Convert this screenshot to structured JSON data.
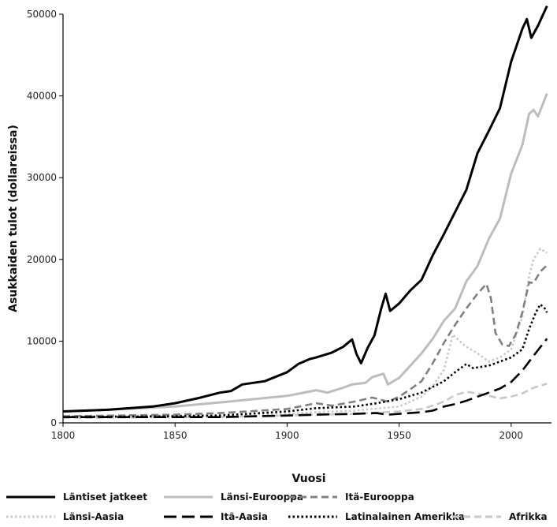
{
  "chart_data": {
    "type": "line",
    "title": "",
    "xlabel": "Vuosi",
    "ylabel": "Asukkaiden tulot (dollareissa)",
    "xlim": [
      1800,
      2018
    ],
    "ylim": [
      0,
      50000
    ],
    "xticks": [
      1800,
      1850,
      1900,
      1950,
      2000
    ],
    "yticks": [
      0,
      10000,
      20000,
      30000,
      40000,
      50000
    ],
    "grid": false,
    "legend_position": "bottom",
    "series": [
      {
        "name": "Läntiset jatkeet",
        "color": "#000000",
        "dash": "solid",
        "points": [
          [
            1800,
            1400
          ],
          [
            1820,
            1600
          ],
          [
            1840,
            2000
          ],
          [
            1850,
            2400
          ],
          [
            1860,
            3000
          ],
          [
            1870,
            3700
          ],
          [
            1875,
            3900
          ],
          [
            1880,
            4700
          ],
          [
            1890,
            5100
          ],
          [
            1900,
            6200
          ],
          [
            1905,
            7200
          ],
          [
            1910,
            7800
          ],
          [
            1913,
            8000
          ],
          [
            1920,
            8600
          ],
          [
            1925,
            9300
          ],
          [
            1929,
            10200
          ],
          [
            1931,
            8400
          ],
          [
            1933,
            7300
          ],
          [
            1936,
            9200
          ],
          [
            1939,
            10700
          ],
          [
            1942,
            14000
          ],
          [
            1944,
            15800
          ],
          [
            1946,
            13700
          ],
          [
            1950,
            14600
          ],
          [
            1955,
            16200
          ],
          [
            1960,
            17500
          ],
          [
            1965,
            20500
          ],
          [
            1970,
            23100
          ],
          [
            1975,
            25800
          ],
          [
            1980,
            28500
          ],
          [
            1985,
            33000
          ],
          [
            1990,
            35700
          ],
          [
            1995,
            38500
          ],
          [
            2000,
            44200
          ],
          [
            2005,
            48200
          ],
          [
            2007,
            49400
          ],
          [
            2009,
            47100
          ],
          [
            2012,
            48600
          ],
          [
            2016,
            51000
          ]
        ]
      },
      {
        "name": "Länsi-Eurooppa",
        "color": "#bdbdbd",
        "dash": "solid",
        "points": [
          [
            1800,
            1400
          ],
          [
            1820,
            1600
          ],
          [
            1850,
            2000
          ],
          [
            1870,
            2500
          ],
          [
            1900,
            3300
          ],
          [
            1913,
            4000
          ],
          [
            1918,
            3700
          ],
          [
            1925,
            4300
          ],
          [
            1929,
            4700
          ],
          [
            1935,
            4900
          ],
          [
            1938,
            5600
          ],
          [
            1943,
            6000
          ],
          [
            1945,
            4700
          ],
          [
            1950,
            5500
          ],
          [
            1955,
            7000
          ],
          [
            1960,
            8500
          ],
          [
            1965,
            10300
          ],
          [
            1970,
            12500
          ],
          [
            1975,
            14000
          ],
          [
            1980,
            17300
          ],
          [
            1985,
            19200
          ],
          [
            1990,
            22500
          ],
          [
            1995,
            25000
          ],
          [
            2000,
            30500
          ],
          [
            2005,
            34000
          ],
          [
            2008,
            37800
          ],
          [
            2010,
            38300
          ],
          [
            2012,
            37500
          ],
          [
            2016,
            40300
          ]
        ]
      },
      {
        "name": "Itä-Eurooppa",
        "color": "#808080",
        "dash": "dashed",
        "points": [
          [
            1800,
            800
          ],
          [
            1850,
            1000
          ],
          [
            1870,
            1200
          ],
          [
            1900,
            1700
          ],
          [
            1913,
            2400
          ],
          [
            1920,
            2100
          ],
          [
            1930,
            2600
          ],
          [
            1938,
            3100
          ],
          [
            1945,
            2600
          ],
          [
            1950,
            3200
          ],
          [
            1955,
            4100
          ],
          [
            1960,
            5100
          ],
          [
            1965,
            7300
          ],
          [
            1970,
            9800
          ],
          [
            1975,
            12000
          ],
          [
            1980,
            14000
          ],
          [
            1985,
            15800
          ],
          [
            1989,
            17000
          ],
          [
            1991,
            15200
          ],
          [
            1993,
            11000
          ],
          [
            1996,
            9600
          ],
          [
            1999,
            9400
          ],
          [
            2002,
            10800
          ],
          [
            2005,
            13500
          ],
          [
            2008,
            17200
          ],
          [
            2010,
            17100
          ],
          [
            2013,
            18500
          ],
          [
            2016,
            19300
          ]
        ]
      },
      {
        "name": "Länsi-Aasia",
        "color": "#c8c8c8",
        "dash": "dotted",
        "points": [
          [
            1800,
            800
          ],
          [
            1850,
            900
          ],
          [
            1900,
            1100
          ],
          [
            1913,
            1300
          ],
          [
            1930,
            1500
          ],
          [
            1950,
            2000
          ],
          [
            1960,
            3200
          ],
          [
            1965,
            4500
          ],
          [
            1970,
            6500
          ],
          [
            1974,
            10800
          ],
          [
            1977,
            10000
          ],
          [
            1980,
            9300
          ],
          [
            1985,
            8500
          ],
          [
            1990,
            7500
          ],
          [
            1995,
            8000
          ],
          [
            2000,
            9000
          ],
          [
            2005,
            13000
          ],
          [
            2008,
            18000
          ],
          [
            2010,
            20000
          ],
          [
            2013,
            21300
          ],
          [
            2016,
            20800
          ]
        ]
      },
      {
        "name": "Itä-Aasia",
        "color": "#000000",
        "dash": "longdash",
        "points": [
          [
            1800,
            700
          ],
          [
            1850,
            700
          ],
          [
            1870,
            700
          ],
          [
            1900,
            900
          ],
          [
            1913,
            1000
          ],
          [
            1930,
            1100
          ],
          [
            1940,
            1200
          ],
          [
            1945,
            1000
          ],
          [
            1950,
            1100
          ],
          [
            1960,
            1300
          ],
          [
            1965,
            1500
          ],
          [
            1970,
            2000
          ],
          [
            1975,
            2300
          ],
          [
            1980,
            2700
          ],
          [
            1985,
            3200
          ],
          [
            1990,
            3700
          ],
          [
            1995,
            4200
          ],
          [
            2000,
            5000
          ],
          [
            2005,
            6400
          ],
          [
            2010,
            8200
          ],
          [
            2016,
            10300
          ]
        ]
      },
      {
        "name": "Latinalainen Amerikka",
        "color": "#000000",
        "dash": "dotted",
        "points": [
          [
            1800,
            700
          ],
          [
            1850,
            800
          ],
          [
            1870,
            900
          ],
          [
            1900,
            1400
          ],
          [
            1913,
            1800
          ],
          [
            1930,
            2000
          ],
          [
            1940,
            2400
          ],
          [
            1950,
            2900
          ],
          [
            1955,
            3300
          ],
          [
            1960,
            3700
          ],
          [
            1965,
            4400
          ],
          [
            1970,
            5100
          ],
          [
            1975,
            6200
          ],
          [
            1980,
            7200
          ],
          [
            1983,
            6700
          ],
          [
            1990,
            7000
          ],
          [
            1995,
            7500
          ],
          [
            2000,
            8000
          ],
          [
            2005,
            9000
          ],
          [
            2008,
            11500
          ],
          [
            2011,
            13500
          ],
          [
            2013,
            14500
          ],
          [
            2015,
            14000
          ],
          [
            2016,
            13500
          ]
        ]
      },
      {
        "name": "Afrikka",
        "color": "#c8c8c8",
        "dash": "dashed",
        "points": [
          [
            1800,
            600
          ],
          [
            1850,
            700
          ],
          [
            1870,
            700
          ],
          [
            1900,
            900
          ],
          [
            1913,
            1000
          ],
          [
            1930,
            1100
          ],
          [
            1950,
            1400
          ],
          [
            1960,
            1700
          ],
          [
            1965,
            2100
          ],
          [
            1970,
            2600
          ],
          [
            1975,
            3400
          ],
          [
            1980,
            3800
          ],
          [
            1985,
            3600
          ],
          [
            1990,
            3300
          ],
          [
            1995,
            3000
          ],
          [
            2000,
            3200
          ],
          [
            2005,
            3600
          ],
          [
            2010,
            4300
          ],
          [
            2016,
            4800
          ]
        ]
      }
    ]
  }
}
